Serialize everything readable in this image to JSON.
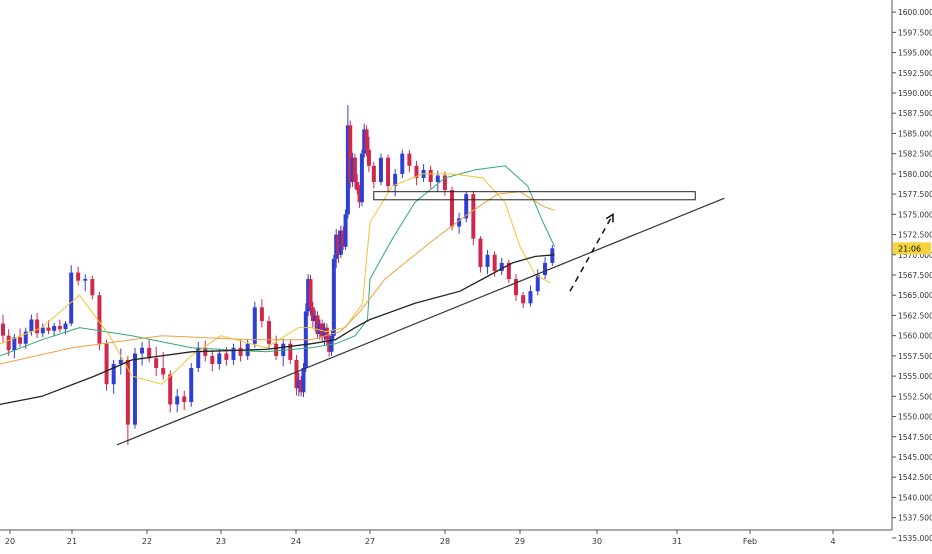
{
  "chart_data": {
    "type": "candlestick",
    "grid": false,
    "ylim": [
      1533.5,
      1601.5
    ],
    "y_ticks": [
      1535,
      1537.5,
      1540,
      1542.5,
      1545,
      1547.5,
      1550,
      1552.5,
      1555,
      1557.5,
      1560,
      1562.5,
      1565,
      1567.5,
      1570,
      1572.5,
      1575,
      1577.5,
      1580,
      1582.5,
      1585,
      1587.5,
      1590,
      1592.5,
      1595,
      1597.5,
      1600
    ],
    "y_tick_labels": [
      "1535.000",
      "1537.500",
      "1540.000",
      "1542.500",
      "1545.000",
      "1547.500",
      "1550.000",
      "1552.500",
      "1555.000",
      "1557.500",
      "1560.000",
      "1562.500",
      "1565.000",
      "1567.500",
      "1570.000",
      "1572.500",
      "1575.000",
      "1577.500",
      "1580.000",
      "1582.500",
      "1585.000",
      "1587.500",
      "1590.000",
      "1592.500",
      "1595.000",
      "1597.500",
      "1600.000"
    ],
    "x_tick_labels": [
      "20",
      "21",
      "22",
      "23",
      "24",
      "27",
      "28",
      "29",
      "30",
      "31",
      "Feb",
      "4"
    ],
    "current_price": 1570.8,
    "countdown_label": "21:06",
    "colors": {
      "up": "#2f3fd6",
      "down": "#d0284a",
      "ma_green": "#2ea879",
      "ma_yellow": "#f4c430",
      "ma_orange": "#f0a040",
      "ma_black": "#222222",
      "trendline": "#333333",
      "price_tag": "#f5d33b"
    },
    "trendline": {
      "start": [
        21.6,
        1546.5
      ],
      "end": [
        31.65,
        1577
      ]
    },
    "resistance_zone": {
      "x_from": 27.05,
      "x_to": 31.25,
      "y_low": 1576.8,
      "y_high": 1577.8
    },
    "projection_arrow": {
      "from": [
        29.65,
        1565.5
      ],
      "to": [
        30.2,
        1575
      ]
    },
    "candles": [
      [
        1561.5,
        1562.6,
        1559.2,
        1560.0
      ],
      [
        1560.0,
        1560.8,
        1557.5,
        1558.2
      ],
      [
        1558.2,
        1560.2,
        1557.2,
        1559.8
      ],
      [
        1559.8,
        1560.9,
        1558.6,
        1559.0
      ],
      [
        1559.0,
        1561.0,
        1558.4,
        1560.5
      ],
      [
        1560.5,
        1562.6,
        1560.0,
        1562.0
      ],
      [
        1562.0,
        1562.8,
        1559.7,
        1560.3
      ],
      [
        1560.3,
        1561.5,
        1559.8,
        1561.0
      ],
      [
        1561.0,
        1561.9,
        1560.2,
        1560.6
      ],
      [
        1560.6,
        1561.6,
        1559.9,
        1561.2
      ],
      [
        1561.2,
        1562.0,
        1560.4,
        1560.8
      ],
      [
        1560.8,
        1561.8,
        1560.2,
        1561.5
      ],
      [
        1561.5,
        1568.7,
        1561.2,
        1567.8
      ],
      [
        1567.8,
        1568.5,
        1566.2,
        1566.8
      ],
      [
        1566.8,
        1567.6,
        1565.5,
        1567.0
      ],
      [
        1567.0,
        1567.4,
        1564.5,
        1565.0
      ],
      [
        1565.0,
        1565.4,
        1558.2,
        1559.0
      ],
      [
        1559.0,
        1559.5,
        1553.2,
        1554.0
      ],
      [
        1554.0,
        1557.0,
        1552.8,
        1556.5
      ],
      [
        1556.5,
        1558.4,
        1555.2,
        1557.0
      ],
      [
        1557.0,
        1557.5,
        1546.5,
        1549.0
      ],
      [
        1549.0,
        1558.5,
        1548.5,
        1557.8
      ],
      [
        1557.8,
        1559.2,
        1556.3,
        1558.5
      ],
      [
        1558.5,
        1559.5,
        1556.7,
        1557.2
      ],
      [
        1557.2,
        1558.6,
        1555.0,
        1556.0
      ],
      [
        1556.0,
        1558.0,
        1554.6,
        1555.2
      ],
      [
        1555.2,
        1555.7,
        1550.5,
        1551.5
      ],
      [
        1551.5,
        1553.4,
        1550.5,
        1552.5
      ],
      [
        1552.5,
        1553.2,
        1550.8,
        1551.8
      ],
      [
        1551.8,
        1556.6,
        1551.2,
        1556.0
      ],
      [
        1556.0,
        1559.2,
        1555.5,
        1558.5
      ],
      [
        1558.5,
        1559.4,
        1556.8,
        1557.5
      ],
      [
        1557.5,
        1558.2,
        1555.6,
        1556.5
      ],
      [
        1556.5,
        1558.4,
        1555.8,
        1557.8
      ],
      [
        1557.8,
        1558.6,
        1556.3,
        1557.0
      ],
      [
        1557.0,
        1559.0,
        1556.4,
        1558.5
      ],
      [
        1558.5,
        1559.5,
        1556.8,
        1557.5
      ],
      [
        1557.5,
        1559.6,
        1557.0,
        1559.0
      ],
      [
        1559.0,
        1564.2,
        1558.5,
        1563.5
      ],
      [
        1563.5,
        1564.5,
        1561.0,
        1561.8
      ],
      [
        1561.8,
        1562.4,
        1558.4,
        1559.0
      ],
      [
        1559.0,
        1560.0,
        1557.0,
        1557.5
      ],
      [
        1557.5,
        1559.6,
        1556.2,
        1559.0
      ],
      [
        1559.0,
        1559.5,
        1556.5,
        1557.0
      ],
      [
        1557.0,
        1557.6,
        1552.6,
        1553.5
      ],
      [
        1553.5,
        1555.4,
        1552.5,
        1554.5
      ],
      [
        1554.5,
        1555.0,
        1552.5,
        1553.0
      ],
      [
        1553.0,
        1556.6,
        1552.4,
        1556.0
      ],
      [
        1556.0,
        1564.0,
        1555.5,
        1563.0
      ],
      [
        1563.0,
        1567.6,
        1562.4,
        1567.0
      ],
      [
        1567.0,
        1567.5,
        1562.5,
        1563.5
      ],
      [
        1563.5,
        1564.2,
        1561.0,
        1561.8
      ],
      [
        1561.8,
        1563.2,
        1560.6,
        1562.5
      ],
      [
        1562.5,
        1563.0,
        1559.6,
        1560.2
      ],
      [
        1560.2,
        1562.0,
        1559.5,
        1561.5
      ],
      [
        1561.5,
        1562.0,
        1559.2,
        1559.8
      ],
      [
        1559.8,
        1561.6,
        1558.8,
        1561.0
      ],
      [
        1561.0,
        1561.5,
        1558.8,
        1559.5
      ],
      [
        1559.5,
        1560.2,
        1557.4,
        1558.0
      ],
      [
        1558.0,
        1560.6,
        1557.5,
        1560.0
      ],
      [
        1560.0,
        1570.0,
        1559.6,
        1569.5
      ],
      [
        1569.5,
        1573.2,
        1568.4,
        1572.5
      ],
      [
        1572.5,
        1573.0,
        1569.0,
        1570.0
      ],
      [
        1570.0,
        1573.6,
        1569.6,
        1573.0
      ],
      [
        1573.0,
        1573.5,
        1570.6,
        1571.0
      ],
      [
        1571.0,
        1575.6,
        1570.6,
        1575.0
      ],
      [
        1575.0,
        1588.5,
        1574.5,
        1586.0
      ],
      [
        1586.0,
        1586.6,
        1578.2,
        1579.0
      ],
      [
        1579.0,
        1582.6,
        1578.4,
        1582.0
      ],
      [
        1582.0,
        1582.5,
        1578.2,
        1579.0
      ],
      [
        1579.0,
        1580.0,
        1577.5,
        1578.0
      ],
      [
        1578.0,
        1578.6,
        1575.8,
        1576.5
      ],
      [
        1576.5,
        1583.0,
        1576.0,
        1582.5
      ],
      [
        1582.5,
        1586.2,
        1582.0,
        1585.5
      ],
      [
        1585.5,
        1586.0,
        1582.2,
        1583.0
      ],
      [
        1583.0,
        1584.6,
        1580.2,
        1581.0
      ],
      [
        1581.0,
        1581.5,
        1578.2,
        1579.0
      ],
      [
        1579.0,
        1582.5,
        1578.6,
        1582.0
      ],
      [
        1582.0,
        1582.4,
        1577.8,
        1578.5
      ],
      [
        1578.5,
        1580.6,
        1577.2,
        1580.0
      ],
      [
        1580.0,
        1583.0,
        1579.5,
        1582.5
      ],
      [
        1582.5,
        1583.0,
        1580.2,
        1581.0
      ],
      [
        1581.0,
        1581.6,
        1578.6,
        1579.5
      ],
      [
        1579.5,
        1581.2,
        1579.0,
        1580.5
      ],
      [
        1580.5,
        1581.0,
        1578.2,
        1579.0
      ],
      [
        1579.0,
        1580.4,
        1577.8,
        1579.8
      ],
      [
        1579.8,
        1580.3,
        1577.3,
        1578.0
      ],
      [
        1578.0,
        1578.4,
        1573.0,
        1573.5
      ],
      [
        1573.5,
        1575.2,
        1572.6,
        1574.5
      ],
      [
        1574.5,
        1577.8,
        1574.0,
        1577.5
      ],
      [
        1577.5,
        1577.9,
        1571.2,
        1572.0
      ],
      [
        1572.0,
        1572.3,
        1567.8,
        1568.5
      ],
      [
        1568.5,
        1570.6,
        1567.6,
        1570.0
      ],
      [
        1570.0,
        1570.4,
        1567.3,
        1568.0
      ],
      [
        1568.0,
        1569.6,
        1567.5,
        1569.0
      ],
      [
        1569.0,
        1569.4,
        1566.5,
        1567.0
      ],
      [
        1567.0,
        1567.6,
        1564.3,
        1565.0
      ],
      [
        1565.0,
        1565.4,
        1563.4,
        1564.0
      ],
      [
        1564.0,
        1566.2,
        1563.6,
        1565.5
      ],
      [
        1565.5,
        1568.2,
        1565.0,
        1567.5
      ],
      [
        1567.5,
        1569.7,
        1567.0,
        1569.0
      ],
      [
        1569.0,
        1571.2,
        1568.6,
        1570.8
      ]
    ],
    "moving_averages": [
      {
        "key": "ma_green",
        "points": [
          [
            19.8,
            1557.5
          ],
          [
            20.5,
            1559.5
          ],
          [
            21.1,
            1561.0
          ],
          [
            21.8,
            1560.0
          ],
          [
            22.6,
            1558.5
          ],
          [
            23.6,
            1558.0
          ],
          [
            24.6,
            1558.5
          ],
          [
            25.6,
            1559.0
          ],
          [
            26.4,
            1560.0
          ],
          [
            26.9,
            1562.0
          ],
          [
            27.0,
            1567.0
          ],
          [
            27.3,
            1572.0
          ],
          [
            27.6,
            1576.5
          ],
          [
            28.0,
            1579.5
          ],
          [
            28.4,
            1580.5
          ],
          [
            28.8,
            1581.0
          ],
          [
            29.1,
            1578.5
          ],
          [
            29.3,
            1574.0
          ],
          [
            29.45,
            1571.0
          ]
        ]
      },
      {
        "key": "ma_yellow",
        "points": [
          [
            19.8,
            1559.0
          ],
          [
            20.5,
            1561.0
          ],
          [
            21.1,
            1565.0
          ],
          [
            21.5,
            1560.0
          ],
          [
            21.8,
            1555.0
          ],
          [
            22.2,
            1554.0
          ],
          [
            22.6,
            1557.5
          ],
          [
            23.0,
            1560.0
          ],
          [
            23.6,
            1558.5
          ],
          [
            24.1,
            1561.0
          ],
          [
            24.6,
            1561.0
          ],
          [
            25.2,
            1560.5
          ],
          [
            26.0,
            1561.0
          ],
          [
            26.7,
            1564.0
          ],
          [
            27.0,
            1574.0
          ],
          [
            27.3,
            1578.5
          ],
          [
            27.7,
            1580.0
          ],
          [
            28.1,
            1580.0
          ],
          [
            28.5,
            1579.5
          ],
          [
            28.8,
            1576.5
          ],
          [
            29.0,
            1571.0
          ],
          [
            29.2,
            1567.5
          ],
          [
            29.4,
            1566.5
          ]
        ]
      },
      {
        "key": "ma_orange",
        "points": [
          [
            19.8,
            1556.5
          ],
          [
            21.0,
            1558.5
          ],
          [
            22.2,
            1560.0
          ],
          [
            23.4,
            1559.5
          ],
          [
            24.6,
            1559.5
          ],
          [
            25.8,
            1560.5
          ],
          [
            26.6,
            1563.0
          ],
          [
            27.2,
            1567.0
          ],
          [
            27.8,
            1571.5
          ],
          [
            28.3,
            1575.0
          ],
          [
            28.7,
            1577.5
          ],
          [
            29.0,
            1577.8
          ],
          [
            29.3,
            1576.0
          ],
          [
            29.45,
            1575.5
          ]
        ]
      },
      {
        "key": "ma_black",
        "points": [
          [
            19.8,
            1551.5
          ],
          [
            20.5,
            1552.5
          ],
          [
            21.3,
            1555.0
          ],
          [
            21.8,
            1557.0
          ],
          [
            22.6,
            1558.0
          ],
          [
            23.6,
            1558.3
          ],
          [
            24.6,
            1559.0
          ],
          [
            25.6,
            1559.5
          ],
          [
            26.4,
            1561.0
          ],
          [
            27.0,
            1562.0
          ],
          [
            27.6,
            1564.0
          ],
          [
            28.2,
            1565.5
          ],
          [
            28.6,
            1567.5
          ],
          [
            28.9,
            1569.0
          ],
          [
            29.2,
            1569.8
          ],
          [
            29.45,
            1570.0
          ]
        ]
      }
    ]
  }
}
